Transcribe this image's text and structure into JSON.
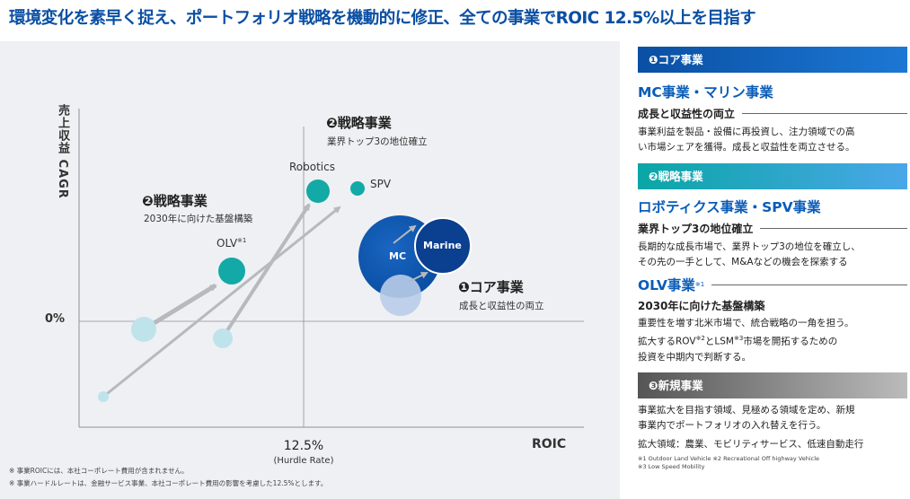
{
  "headline": "環境変化を素早く捉え、ポートフォリオ戦略を機動的に修正、全ての事業でROIC 12.5%以上を目指す",
  "chart": {
    "y_axis_label": "売上収益 CAGR",
    "zero_label": "0%",
    "x_hurdle_value": "12.5%",
    "x_hurdle_sub": "(Hurdle Rate)",
    "x_axis_label": "ROIC",
    "strategic_top": {
      "title": "❷戦略事業",
      "sub": "業界トップ3の地位確立"
    },
    "strategic_left": {
      "title": "❷戦略事業",
      "sub": "2030年に向けた基盤構築"
    },
    "core": {
      "title": "❶コア事業",
      "sub": "成長と収益性の両立"
    },
    "bubbles": {
      "robotics": "Robotics",
      "spv": "SPV",
      "olv": "OLV",
      "olv_note": "※1",
      "mc": "MC",
      "marine": "Marine"
    },
    "notes": [
      "※ 事業ROICには、本社コーポレート費用が含まれません。",
      "※ 事業ハードルレートは、金融サービス事業、本社コーポレート費用の影響を考慮した12.5%とします。"
    ],
    "colors": {
      "teal": "#12a9a6",
      "teal_light": "#bfe3ea",
      "navy": "#0a4fa3",
      "navy_dark": "#0b3f8f",
      "arrow": "#b6b9bd",
      "grid": "#8c9095"
    }
  },
  "right": {
    "core": {
      "bar": "❶コア事業",
      "title": "MC事業・マリン事業",
      "subhead": "成長と収益性の両立",
      "body": [
        "事業利益を製品・設備に再投資し、注力領域での高",
        "い市場シェアを獲得。成長と収益性を両立させる。"
      ]
    },
    "strategic": {
      "bar": "❷戦略事業",
      "title": "ロボティクス事業・SPV事業",
      "subhead": "業界トップ3の地位確立",
      "body": [
        "長期的な成長市場で、業界トップ3の地位を確立し、",
        "その先の一手として、M&Aなどの機会を探索する"
      ],
      "olv_title": "OLV事業",
      "olv_note": "※1",
      "olv_subhead": "2030年に向けた基盤構築",
      "olv_body": [
        "重要性を増す北米市場で、統合戦略の一角を担う。"
      ],
      "olv_body2_a": "拡大するROV",
      "olv_body2_sup1": "※2",
      "olv_body2_b": "とLSM",
      "olv_body2_sup2": "※3",
      "olv_body2_c": "市場を開拓するための",
      "olv_body3": "投資を中期内で判断する。"
    },
    "new": {
      "bar": "❸新規事業",
      "body": [
        "事業拡大を目指す領域、見極める領域を定め、新規",
        "事業内でポートフォリオの入れ替えを行う。"
      ],
      "areas": "拡大領域：農業、モビリティサービス、低速自動走行"
    },
    "footnotes": [
      "※1 Outdoor Land Vehicle  ※2 Recreational Off highway Vehicle",
      "※3 Low Speed Mobility"
    ]
  }
}
